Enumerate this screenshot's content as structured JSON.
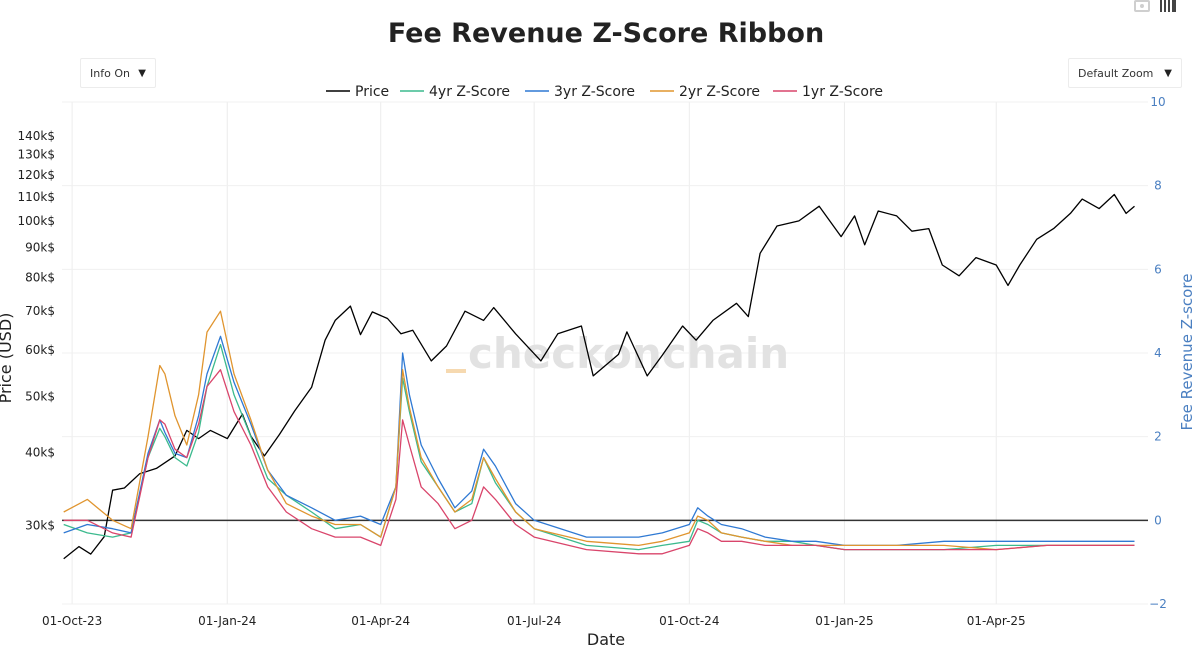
{
  "chart_data": {
    "type": "line",
    "title": "Fee Revenue Z-Score Ribbon",
    "xlabel": "Date",
    "ylabel": "Price (USD)",
    "y2label": "Fee Revenue Z-score",
    "watermark": "checkonchain",
    "y_scale": "log",
    "ylim": [
      22,
      160
    ],
    "y2lim": [
      -2,
      10
    ],
    "y_ticks": [
      {
        "v": 30,
        "label": "30k$"
      },
      {
        "v": 40,
        "label": "40k$"
      },
      {
        "v": 50,
        "label": "50k$"
      },
      {
        "v": 60,
        "label": "60k$"
      },
      {
        "v": 70,
        "label": "70k$"
      },
      {
        "v": 80,
        "label": "80k$"
      },
      {
        "v": 90,
        "label": "90k$"
      },
      {
        "v": 100,
        "label": "100k$"
      },
      {
        "v": 110,
        "label": "110k$"
      },
      {
        "v": 120,
        "label": "120k$"
      },
      {
        "v": 130,
        "label": "130k$"
      },
      {
        "v": 140,
        "label": "140k$"
      }
    ],
    "y2_ticks": [
      -2,
      0,
      2,
      4,
      6,
      8,
      10
    ],
    "xlim": [
      "2023-09-25",
      "2025-06-30"
    ],
    "x_ticks": [
      {
        "d": "2023-10-01",
        "label": "01-Oct-23"
      },
      {
        "d": "2024-01-01",
        "label": "01-Jan-24"
      },
      {
        "d": "2024-04-01",
        "label": "01-Apr-24"
      },
      {
        "d": "2024-07-01",
        "label": "01-Jul-24"
      },
      {
        "d": "2024-10-01",
        "label": "01-Oct-24"
      },
      {
        "d": "2025-01-01",
        "label": "01-Jan-25"
      },
      {
        "d": "2025-04-01",
        "label": "01-Apr-25"
      }
    ],
    "grid": true,
    "legend": "top-center",
    "series": [
      {
        "name": "Price",
        "axis": "y",
        "color": "#000000",
        "x": [
          "2023-09-26",
          "2023-10-05",
          "2023-10-12",
          "2023-10-20",
          "2023-10-25",
          "2023-11-01",
          "2023-11-10",
          "2023-11-20",
          "2023-12-01",
          "2023-12-08",
          "2023-12-15",
          "2023-12-22",
          "2024-01-01",
          "2024-01-10",
          "2024-01-15",
          "2024-01-23",
          "2024-02-01",
          "2024-02-10",
          "2024-02-20",
          "2024-02-28",
          "2024-03-05",
          "2024-03-14",
          "2024-03-20",
          "2024-03-27",
          "2024-04-05",
          "2024-04-13",
          "2024-04-20",
          "2024-05-01",
          "2024-05-10",
          "2024-05-21",
          "2024-06-01",
          "2024-06-07",
          "2024-06-20",
          "2024-07-05",
          "2024-07-15",
          "2024-07-29",
          "2024-08-05",
          "2024-08-20",
          "2024-08-25",
          "2024-09-06",
          "2024-09-15",
          "2024-09-27",
          "2024-10-05",
          "2024-10-15",
          "2024-10-29",
          "2024-11-05",
          "2024-11-12",
          "2024-11-22",
          "2024-12-05",
          "2024-12-17",
          "2024-12-30",
          "2025-01-07",
          "2025-01-13",
          "2025-01-21",
          "2025-02-01",
          "2025-02-10",
          "2025-02-20",
          "2025-02-28",
          "2025-03-10",
          "2025-03-20",
          "2025-04-01",
          "2025-04-08",
          "2025-04-15",
          "2025-04-25",
          "2025-05-05",
          "2025-05-15",
          "2025-05-22",
          "2025-06-01",
          "2025-06-10",
          "2025-06-17",
          "2025-06-22"
        ],
        "values": [
          26.3,
          27.6,
          26.8,
          28.7,
          34.5,
          34.8,
          36.8,
          37.6,
          39.5,
          43.7,
          42.3,
          43.7,
          42.3,
          46.6,
          42.7,
          39.5,
          43.0,
          47.2,
          51.8,
          62.4,
          67.5,
          71.4,
          63.8,
          69.8,
          68.0,
          64.0,
          64.9,
          57.5,
          61.0,
          70.0,
          67.5,
          71.0,
          64.0,
          57.5,
          64.0,
          66.0,
          54.2,
          59.0,
          64.5,
          54.2,
          58.8,
          66.0,
          62.4,
          67.5,
          72.2,
          68.5,
          88.0,
          98.0,
          100.0,
          106.0,
          94.0,
          102.0,
          91.0,
          104.0,
          102.0,
          96.0,
          97.0,
          84.0,
          80.5,
          86.5,
          84.0,
          77.5,
          84.0,
          93.0,
          97.0,
          103.0,
          109.0,
          105.0,
          111.0,
          103.0,
          106.0
        ]
      },
      {
        "name": "4yr Z-Score",
        "axis": "y2",
        "color": "#3cba8e",
        "x": [
          "2023-09-26",
          "2023-10-10",
          "2023-10-25",
          "2023-11-05",
          "2023-11-15",
          "2023-11-22",
          "2023-11-25",
          "2023-12-01",
          "2023-12-08",
          "2023-12-15",
          "2023-12-20",
          "2023-12-28",
          "2024-01-05",
          "2024-01-15",
          "2024-01-25",
          "2024-02-05",
          "2024-02-20",
          "2024-03-05",
          "2024-03-20",
          "2024-04-01",
          "2024-04-10",
          "2024-04-14",
          "2024-04-18",
          "2024-04-25",
          "2024-05-05",
          "2024-05-15",
          "2024-05-25",
          "2024-06-01",
          "2024-06-08",
          "2024-06-20",
          "2024-07-01",
          "2024-08-01",
          "2024-09-01",
          "2024-09-15",
          "2024-10-01",
          "2024-10-06",
          "2024-10-12",
          "2024-10-20",
          "2024-11-01",
          "2024-11-15",
          "2024-12-01",
          "2024-12-15",
          "2025-01-01",
          "2025-02-01",
          "2025-03-01",
          "2025-04-01",
          "2025-05-01",
          "2025-06-01",
          "2025-06-22"
        ],
        "values": [
          -0.1,
          -0.3,
          -0.4,
          -0.3,
          1.5,
          2.2,
          2.0,
          1.5,
          1.3,
          2.1,
          3.2,
          4.2,
          3.0,
          2.0,
          1.0,
          0.6,
          0.2,
          -0.2,
          -0.1,
          -0.4,
          0.8,
          3.4,
          2.6,
          1.4,
          0.8,
          0.2,
          0.4,
          1.5,
          0.9,
          0.2,
          -0.2,
          -0.6,
          -0.7,
          -0.6,
          -0.5,
          0.0,
          -0.1,
          -0.3,
          -0.4,
          -0.5,
          -0.5,
          -0.6,
          -0.7,
          -0.7,
          -0.7,
          -0.6,
          -0.6,
          -0.6,
          -0.6
        ]
      },
      {
        "name": "3yr Z-Score",
        "axis": "y2",
        "color": "#2f79d3",
        "x": [
          "2023-09-26",
          "2023-10-10",
          "2023-10-25",
          "2023-11-05",
          "2023-11-15",
          "2023-11-22",
          "2023-11-25",
          "2023-12-01",
          "2023-12-08",
          "2023-12-15",
          "2023-12-20",
          "2023-12-28",
          "2024-01-05",
          "2024-01-15",
          "2024-01-25",
          "2024-02-05",
          "2024-02-20",
          "2024-03-05",
          "2024-03-20",
          "2024-04-01",
          "2024-04-10",
          "2024-04-14",
          "2024-04-18",
          "2024-04-25",
          "2024-05-05",
          "2024-05-15",
          "2024-05-25",
          "2024-06-01",
          "2024-06-08",
          "2024-06-20",
          "2024-07-01",
          "2024-08-01",
          "2024-09-01",
          "2024-09-15",
          "2024-10-01",
          "2024-10-06",
          "2024-10-12",
          "2024-10-20",
          "2024-11-01",
          "2024-11-15",
          "2024-12-01",
          "2024-12-15",
          "2025-01-01",
          "2025-02-01",
          "2025-03-01",
          "2025-04-01",
          "2025-05-01",
          "2025-06-01",
          "2025-06-22"
        ],
        "values": [
          -0.3,
          -0.1,
          -0.2,
          -0.3,
          1.6,
          2.4,
          2.1,
          1.6,
          1.5,
          2.5,
          3.5,
          4.4,
          3.3,
          2.3,
          1.2,
          0.6,
          0.3,
          0.0,
          0.1,
          -0.1,
          0.8,
          4.0,
          3.0,
          1.8,
          1.0,
          0.3,
          0.7,
          1.7,
          1.3,
          0.4,
          0.0,
          -0.4,
          -0.4,
          -0.3,
          -0.1,
          0.3,
          0.1,
          -0.1,
          -0.2,
          -0.4,
          -0.5,
          -0.5,
          -0.6,
          -0.6,
          -0.5,
          -0.5,
          -0.5,
          -0.5,
          -0.5
        ]
      },
      {
        "name": "2yr Z-Score",
        "axis": "y2",
        "color": "#e0952f",
        "x": [
          "2023-09-26",
          "2023-10-10",
          "2023-10-25",
          "2023-11-05",
          "2023-11-15",
          "2023-11-22",
          "2023-11-25",
          "2023-12-01",
          "2023-12-08",
          "2023-12-15",
          "2023-12-20",
          "2023-12-28",
          "2024-01-05",
          "2024-01-15",
          "2024-01-25",
          "2024-02-05",
          "2024-02-20",
          "2024-03-05",
          "2024-03-20",
          "2024-04-01",
          "2024-04-10",
          "2024-04-14",
          "2024-04-18",
          "2024-04-25",
          "2024-05-05",
          "2024-05-15",
          "2024-05-25",
          "2024-06-01",
          "2024-06-08",
          "2024-06-20",
          "2024-07-01",
          "2024-08-01",
          "2024-09-01",
          "2024-09-15",
          "2024-10-01",
          "2024-10-06",
          "2024-10-12",
          "2024-10-20",
          "2024-11-01",
          "2024-11-15",
          "2024-12-01",
          "2024-12-15",
          "2025-01-01",
          "2025-02-01",
          "2025-03-01",
          "2025-04-01",
          "2025-05-01",
          "2025-06-01",
          "2025-06-22"
        ],
        "values": [
          0.2,
          0.5,
          0.0,
          -0.2,
          2.0,
          3.7,
          3.5,
          2.5,
          1.8,
          3.0,
          4.5,
          5.0,
          3.5,
          2.4,
          1.2,
          0.4,
          0.1,
          -0.1,
          -0.1,
          -0.4,
          0.8,
          3.6,
          2.7,
          1.5,
          0.8,
          0.2,
          0.5,
          1.5,
          1.0,
          0.2,
          -0.2,
          -0.5,
          -0.6,
          -0.5,
          -0.3,
          0.1,
          0.0,
          -0.3,
          -0.4,
          -0.5,
          -0.6,
          -0.6,
          -0.6,
          -0.6,
          -0.6,
          -0.7,
          -0.6,
          -0.6,
          -0.6
        ]
      },
      {
        "name": "1yr Z-Score",
        "axis": "y2",
        "color": "#d9456b",
        "x": [
          "2023-09-26",
          "2023-10-10",
          "2023-10-25",
          "2023-11-05",
          "2023-11-15",
          "2023-11-22",
          "2023-11-25",
          "2023-12-01",
          "2023-12-08",
          "2023-12-15",
          "2023-12-20",
          "2023-12-28",
          "2024-01-05",
          "2024-01-15",
          "2024-01-25",
          "2024-02-05",
          "2024-02-20",
          "2024-03-05",
          "2024-03-20",
          "2024-04-01",
          "2024-04-10",
          "2024-04-14",
          "2024-04-18",
          "2024-04-25",
          "2024-05-05",
          "2024-05-15",
          "2024-05-25",
          "2024-06-01",
          "2024-06-08",
          "2024-06-20",
          "2024-07-01",
          "2024-08-01",
          "2024-09-01",
          "2024-09-15",
          "2024-10-01",
          "2024-10-06",
          "2024-10-12",
          "2024-10-20",
          "2024-11-01",
          "2024-11-15",
          "2024-12-01",
          "2024-12-15",
          "2025-01-01",
          "2025-02-01",
          "2025-03-01",
          "2025-04-01",
          "2025-05-01",
          "2025-06-01",
          "2025-06-22"
        ],
        "values": [
          0.0,
          0.0,
          -0.3,
          -0.4,
          1.5,
          2.4,
          2.3,
          1.7,
          1.5,
          2.3,
          3.2,
          3.6,
          2.6,
          1.8,
          0.8,
          0.2,
          -0.2,
          -0.4,
          -0.4,
          -0.6,
          0.5,
          2.4,
          1.8,
          0.8,
          0.4,
          -0.2,
          0.0,
          0.8,
          0.5,
          -0.1,
          -0.4,
          -0.7,
          -0.8,
          -0.8,
          -0.6,
          -0.2,
          -0.3,
          -0.5,
          -0.5,
          -0.6,
          -0.6,
          -0.6,
          -0.7,
          -0.7,
          -0.7,
          -0.7,
          -0.6,
          -0.6,
          -0.6
        ]
      }
    ]
  },
  "controls": {
    "info_label": "Info On",
    "zoom_label": "Default Zoom",
    "arrow": "▼"
  }
}
